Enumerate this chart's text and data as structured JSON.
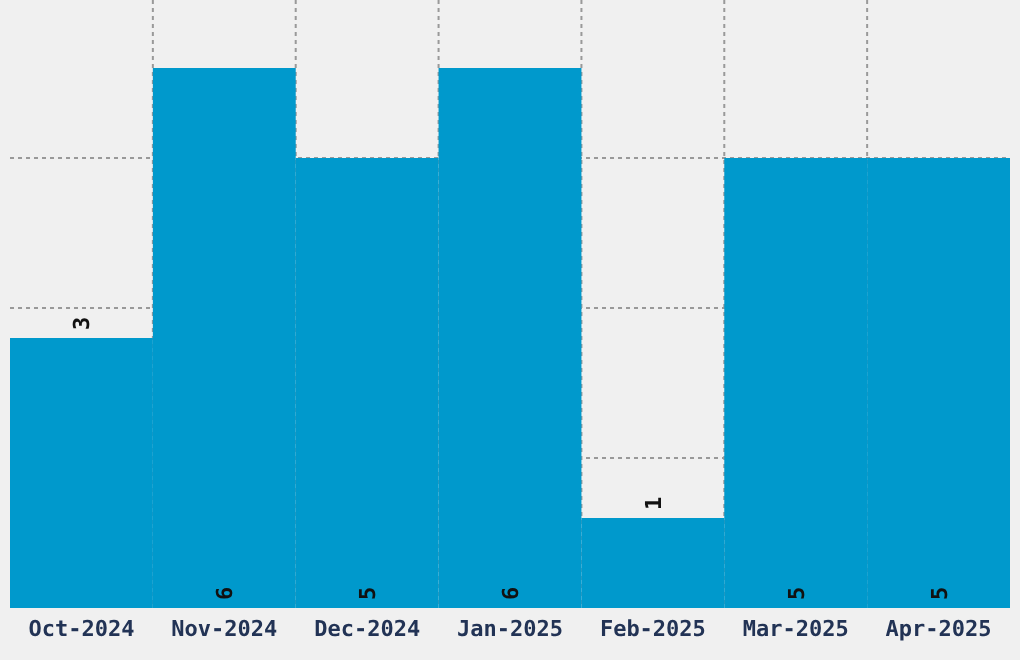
{
  "chart_data": {
    "type": "bar",
    "categories": [
      "Oct-2024",
      "Nov-2024",
      "Dec-2024",
      "Jan-2025",
      "Feb-2025",
      "Mar-2025",
      "Apr-2025"
    ],
    "values": [
      3,
      6,
      5,
      6,
      1,
      5,
      5
    ],
    "color": "#0099cc",
    "yticks": [
      {
        "value": 1.667,
        "label": null
      },
      {
        "value": 3.333,
        "label": null
      },
      {
        "value": 5,
        "label": null
      }
    ],
    "grid": true,
    "data_labels": true
  }
}
